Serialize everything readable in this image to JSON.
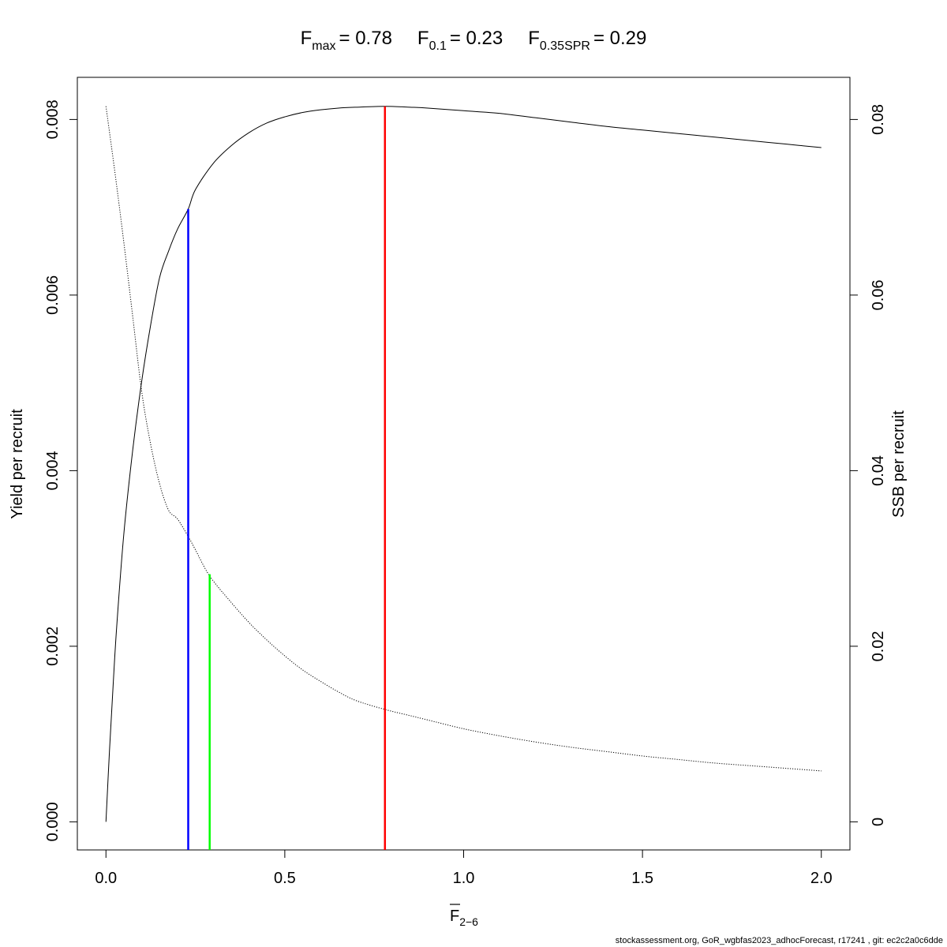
{
  "title": {
    "fmax": {
      "symbol": "F",
      "sub": "max",
      "eq": "= 0.78"
    },
    "f01": {
      "symbol": "F",
      "sub": "0.1",
      "eq": "= 0.23"
    },
    "f035spr": {
      "symbol": "F",
      "sub": "0.35SPR",
      "eq": "= 0.29"
    }
  },
  "xlabel": {
    "symbol": "F",
    "sub": "2−6"
  },
  "ylabel_left": "Yield per recruit",
  "ylabel_right": "SSB per recruit",
  "footer": "stockassessment.org, GoR_wgbfas2023_adhocForecast, r17241 , git: ec2c2a0c6dde",
  "colors": {
    "fmax": "#ff0000",
    "f01": "#0000ff",
    "f035spr": "#00ff00",
    "curve": "#000000"
  },
  "chart_data": {
    "type": "line",
    "xlim": [
      -0.08,
      2.08
    ],
    "ylim_left": [
      -0.00032,
      0.00848
    ],
    "ylim_right": [
      -0.0032,
      0.0848
    ],
    "x_ticks": [
      0.0,
      0.5,
      1.0,
      1.5,
      2.0
    ],
    "x_tick_labels": [
      "0.0",
      "0.5",
      "1.0",
      "1.5",
      "2.0"
    ],
    "y_left_ticks": [
      0.0,
      0.002,
      0.004,
      0.006,
      0.008
    ],
    "y_left_tick_labels": [
      "0.000",
      "0.002",
      "0.004",
      "0.006",
      "0.008"
    ],
    "y_right_ticks": [
      0,
      0.02,
      0.04,
      0.06,
      0.08
    ],
    "y_right_tick_labels": [
      "0",
      "0.02",
      "0.04",
      "0.06",
      "0.08"
    ],
    "series": [
      {
        "axis": "left",
        "style": "solid",
        "x": [
          0,
          0.01,
          0.02,
          0.03,
          0.05,
          0.075,
          0.1,
          0.125,
          0.15,
          0.175,
          0.2,
          0.23,
          0.25,
          0.3,
          0.35,
          0.4,
          0.45,
          0.5,
          0.55,
          0.6,
          0.65,
          0.7,
          0.78,
          0.85,
          0.9,
          1.0,
          1.1,
          1.2,
          1.3,
          1.4,
          1.5,
          1.6,
          1.7,
          1.8,
          1.9,
          2.0
        ],
        "y": [
          0,
          0.00082,
          0.00155,
          0.00222,
          0.00328,
          0.00424,
          0.00502,
          0.00566,
          0.0062,
          0.0065,
          0.00675,
          0.00698,
          0.0072,
          0.0075,
          0.0077,
          0.00785,
          0.00796,
          0.00803,
          0.00808,
          0.00811,
          0.00813,
          0.00814,
          0.00815,
          0.00814,
          0.00813,
          0.0081,
          0.00807,
          0.00802,
          0.00797,
          0.00792,
          0.00788,
          0.00784,
          0.0078,
          0.00776,
          0.00772,
          0.00768
        ]
      },
      {
        "axis": "right",
        "style": "dotted",
        "x": [
          0,
          0.025,
          0.05,
          0.075,
          0.1,
          0.125,
          0.15,
          0.175,
          0.2,
          0.23,
          0.25,
          0.29,
          0.35,
          0.4,
          0.45,
          0.5,
          0.55,
          0.6,
          0.65,
          0.7,
          0.78,
          0.85,
          0.9,
          1.0,
          1.1,
          1.2,
          1.3,
          1.4,
          1.5,
          1.6,
          1.7,
          1.8,
          1.9,
          2.0
        ],
        "y": [
          0.0815,
          0.074,
          0.066,
          0.0575,
          0.049,
          0.043,
          0.0385,
          0.0355,
          0.0345,
          0.0325,
          0.031,
          0.028,
          0.025,
          0.0227,
          0.0207,
          0.0189,
          0.0173,
          0.016,
          0.0148,
          0.0138,
          0.0128,
          0.0121,
          0.0116,
          0.0106,
          0.0098,
          0.0091,
          0.0085,
          0.008,
          0.0075,
          0.0071,
          0.0067,
          0.0064,
          0.0061,
          0.0058
        ]
      }
    ],
    "reference_lines": [
      {
        "name": "Fmax",
        "x": 0.78,
        "y": 0.00815,
        "axis": "left",
        "color": "#ff0000"
      },
      {
        "name": "F0.1",
        "x": 0.23,
        "y": 0.00698,
        "axis": "left",
        "color": "#0000ff"
      },
      {
        "name": "F0.35SPR",
        "x": 0.29,
        "y": 0.0282,
        "axis": "right",
        "color": "#00ff00"
      }
    ]
  }
}
